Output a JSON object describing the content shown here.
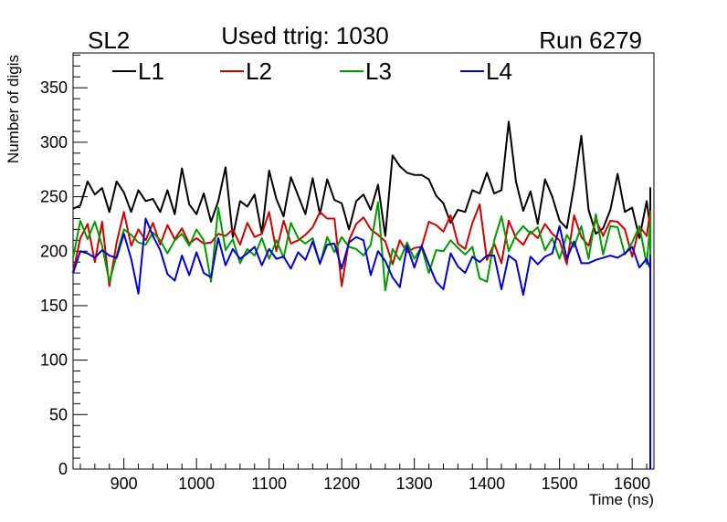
{
  "chart_data": {
    "type": "line",
    "title": "Used ttrig: 1030",
    "left_label": "SL2",
    "right_label": "Run 6279",
    "xlabel": "Time (ns)",
    "ylabel": "Number of digis",
    "xlim": [
      830,
      1630
    ],
    "ylim": [
      0,
      382
    ],
    "x_ticks": [
      900,
      1000,
      1100,
      1200,
      1300,
      1400,
      1500,
      1600
    ],
    "y_ticks": [
      0,
      50,
      100,
      150,
      200,
      250,
      300,
      350
    ],
    "x_start": 830,
    "x_step": 10,
    "legend_position": "top",
    "series": [
      {
        "name": "L1",
        "color": "#000000",
        "values": [
          239,
          242,
          264,
          252,
          258,
          236,
          264,
          254,
          236,
          256,
          246,
          248,
          236,
          256,
          234,
          276,
          243,
          234,
          253,
          227,
          246,
          277,
          213,
          246,
          241,
          252,
          216,
          274,
          248,
          232,
          268,
          251,
          234,
          267,
          234,
          266,
          247,
          244,
          220,
          246,
          252,
          238,
          261,
          214,
          288,
          278,
          272,
          270,
          270,
          266,
          251,
          244,
          226,
          238,
          236,
          256,
          253,
          272,
          253,
          256,
          319,
          264,
          237,
          255,
          225,
          266,
          250,
          228,
          221,
          260,
          306,
          238,
          216,
          221,
          238,
          271,
          236,
          240,
          212,
          246,
          222,
          258,
          246,
          253,
          0
        ]
      },
      {
        "name": "L2",
        "color": "#cc0000",
        "values": [
          181,
          212,
          225,
          190,
          227,
          168,
          208,
          236,
          205,
          220,
          210,
          226,
          206,
          224,
          211,
          221,
          207,
          212,
          207,
          208,
          216,
          214,
          220,
          206,
          226,
          213,
          216,
          236,
          200,
          228,
          207,
          210,
          215,
          222,
          236,
          230,
          230,
          168,
          210,
          225,
          231,
          220,
          215,
          209,
          188,
          210,
          199,
          203,
          204,
          227,
          224,
          218,
          233,
          207,
          202,
          226,
          243,
          192,
          207,
          189,
          228,
          212,
          206,
          218,
          212,
          225,
          216,
          210,
          188,
          233,
          213,
          205,
          229,
          214,
          228,
          227,
          220,
          195,
          223,
          214,
          237,
          201,
          236,
          237,
          0
        ]
      },
      {
        "name": "L3",
        "color": "#009900",
        "values": [
          194,
          228,
          211,
          227,
          205,
          172,
          196,
          220,
          215,
          208,
          206,
          217,
          210,
          198,
          210,
          216,
          205,
          220,
          210,
          172,
          240,
          201,
          211,
          189,
          202,
          196,
          212,
          193,
          210,
          194,
          226,
          212,
          207,
          212,
          188,
          213,
          199,
          213,
          204,
          202,
          196,
          206,
          245,
          164,
          202,
          192,
          208,
          193,
          204,
          180,
          201,
          200,
          210,
          203,
          197,
          204,
          175,
          172,
          210,
          232,
          200,
          215,
          223,
          216,
          222,
          201,
          212,
          193,
          215,
          204,
          223,
          193,
          234,
          197,
          223,
          222,
          197,
          208,
          223,
          188,
          226,
          190,
          236,
          233,
          0
        ]
      },
      {
        "name": "L4",
        "color": "#0000cc",
        "values": [
          180,
          200,
          198,
          194,
          201,
          196,
          194,
          216,
          193,
          161,
          230,
          214,
          201,
          179,
          173,
          196,
          178,
          199,
          180,
          176,
          212,
          187,
          202,
          193,
          198,
          204,
          187,
          202,
          193,
          195,
          184,
          199,
          192,
          209,
          189,
          206,
          207,
          184,
          208,
          213,
          210,
          178,
          200,
          191,
          176,
          167,
          205,
          185,
          205,
          188,
          172,
          165,
          198,
          186,
          180,
          195,
          190,
          196,
          196,
          165,
          196,
          191,
          160,
          195,
          188,
          195,
          198,
          223,
          193,
          209,
          189,
          189,
          192,
          194,
          196,
          194,
          198,
          204,
          185,
          193,
          184,
          196,
          185,
          196,
          0
        ]
      }
    ]
  }
}
